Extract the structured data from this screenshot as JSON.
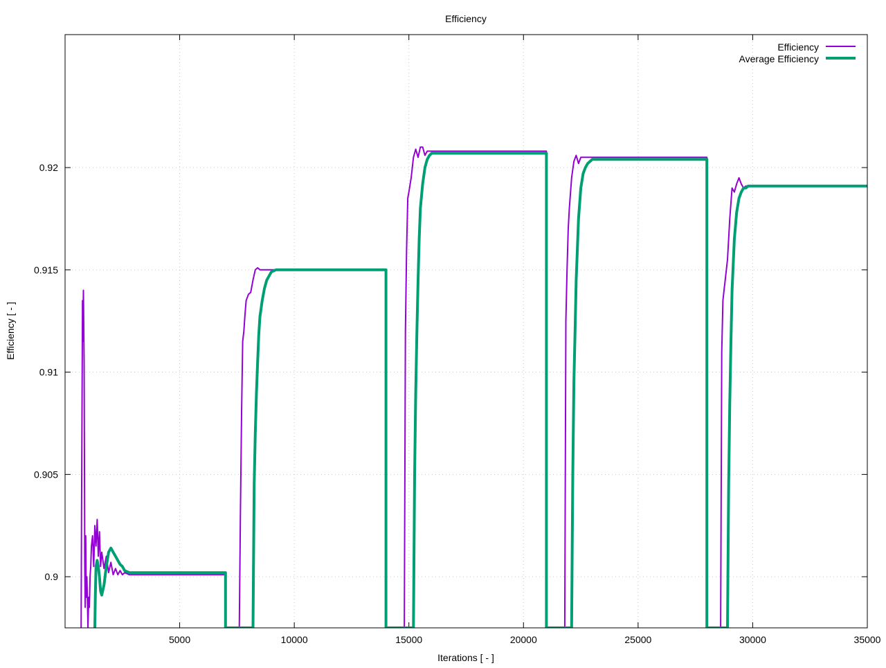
{
  "chart_data": {
    "type": "line",
    "title": "Efficiency",
    "xlabel": "Iterations [ - ]",
    "ylabel": "Efficiency [ - ]",
    "xlim": [
      0,
      35000
    ],
    "ylim": [
      0.8975,
      0.9265
    ],
    "x_ticks": [
      {
        "value": 5000,
        "label": "5000"
      },
      {
        "value": 10000,
        "label": "10000"
      },
      {
        "value": 15000,
        "label": "15000"
      },
      {
        "value": 20000,
        "label": "20000"
      },
      {
        "value": 25000,
        "label": "25000"
      },
      {
        "value": 30000,
        "label": "30000"
      },
      {
        "value": 35000,
        "label": "35000"
      }
    ],
    "y_ticks": [
      {
        "value": 0.9,
        "label": "0.9"
      },
      {
        "value": 0.905,
        "label": "0.905"
      },
      {
        "value": 0.91,
        "label": "0.91"
      },
      {
        "value": 0.915,
        "label": "0.915"
      },
      {
        "value": 0.92,
        "label": "0.92"
      }
    ],
    "grid": true,
    "legend_position": "top-right",
    "series": [
      {
        "name": "Efficiency",
        "color": "#9400d3",
        "line_width": 2,
        "x": [
          700,
          720,
          760,
          780,
          800,
          830,
          860,
          880,
          900,
          920,
          950,
          980,
          1000,
          1030,
          1060,
          1090,
          1120,
          1150,
          1200,
          1250,
          1300,
          1350,
          1400,
          1450,
          1500,
          1550,
          1600,
          1700,
          1800,
          1900,
          2000,
          2100,
          2200,
          2300,
          2400,
          2500,
          2600,
          2800,
          2800,
          7000,
          7000,
          7600,
          7650,
          7700,
          7750,
          7800,
          7850,
          7900,
          8000,
          8100,
          8200,
          8300,
          8400,
          8500,
          8700,
          9000,
          14000,
          14000,
          14800,
          14850,
          14900,
          14950,
          15000,
          15100,
          15200,
          15300,
          15400,
          15500,
          15600,
          15700,
          15800,
          16000,
          21000,
          21000,
          21800,
          21850,
          21900,
          21950,
          22000,
          22100,
          22200,
          22300,
          22400,
          22500,
          22600,
          22700,
          23000,
          28000,
          28000,
          28600,
          28650,
          28700,
          28750,
          28800,
          28900,
          29000,
          29100,
          29200,
          29300,
          29400,
          29500,
          29600,
          29700,
          30000,
          35000
        ],
        "y": [
          0.8975,
          0.903,
          0.9135,
          0.9115,
          0.914,
          0.9105,
          0.9005,
          0.8985,
          0.902,
          0.899,
          0.9,
          0.8985,
          0.8975,
          0.899,
          0.8985,
          0.9,
          0.9005,
          0.9015,
          0.902,
          0.9005,
          0.9025,
          0.9015,
          0.9028,
          0.901,
          0.9022,
          0.9005,
          0.9012,
          0.9004,
          0.901,
          0.9002,
          0.9007,
          0.9001,
          0.9004,
          0.9001,
          0.9003,
          0.9001,
          0.9002,
          0.9001,
          0.9001,
          0.9001,
          0.8975,
          0.8975,
          0.903,
          0.908,
          0.9115,
          0.912,
          0.9128,
          0.9135,
          0.9138,
          0.9139,
          0.9145,
          0.915,
          0.9151,
          0.915,
          0.915,
          0.915,
          0.915,
          0.8975,
          0.8975,
          0.912,
          0.916,
          0.9185,
          0.9188,
          0.9195,
          0.9205,
          0.9209,
          0.9205,
          0.921,
          0.921,
          0.9206,
          0.9208,
          0.9208,
          0.9208,
          0.8975,
          0.8975,
          0.9125,
          0.915,
          0.917,
          0.918,
          0.9195,
          0.9203,
          0.9206,
          0.9202,
          0.9205,
          0.9205,
          0.9205,
          0.9205,
          0.9205,
          0.8975,
          0.8975,
          0.911,
          0.9135,
          0.914,
          0.9145,
          0.9155,
          0.9175,
          0.919,
          0.9188,
          0.9192,
          0.9195,
          0.9192,
          0.919,
          0.9191,
          0.9191,
          0.9191
        ]
      },
      {
        "name": "Average Efficiency",
        "color": "#009e73",
        "line_width": 4,
        "x": [
          1300,
          1320,
          1350,
          1400,
          1450,
          1500,
          1550,
          1600,
          1700,
          1800,
          1900,
          2000,
          2100,
          2200,
          2300,
          2400,
          2500,
          2600,
          2800,
          7000,
          7000,
          8200,
          8250,
          8300,
          8350,
          8400,
          8450,
          8500,
          8600,
          8700,
          8800,
          8900,
          9000,
          9200,
          14000,
          14000,
          14200,
          15200,
          15250,
          15300,
          15350,
          15400,
          15450,
          15500,
          15600,
          15700,
          15800,
          15900,
          16000,
          21000,
          21000,
          21200,
          22100,
          22150,
          22200,
          22250,
          22300,
          22400,
          22500,
          22600,
          22700,
          22800,
          23000,
          28000,
          28000,
          28200,
          28900,
          28950,
          29000,
          29050,
          29100,
          29200,
          29300,
          29400,
          29500,
          29600,
          29700,
          29800,
          29900,
          35000
        ],
        "y": [
          0.8975,
          0.899,
          0.9005,
          0.9008,
          0.9005,
          0.9,
          0.8993,
          0.8991,
          0.8996,
          0.9005,
          0.9012,
          0.9014,
          0.9012,
          0.901,
          0.9008,
          0.9006,
          0.9005,
          0.9003,
          0.9002,
          0.9002,
          0.8975,
          0.8975,
          0.9045,
          0.907,
          0.909,
          0.9105,
          0.9118,
          0.9127,
          0.9135,
          0.9141,
          0.9145,
          0.9147,
          0.9149,
          0.915,
          0.915,
          0.8975,
          0.8975,
          0.8975,
          0.905,
          0.909,
          0.912,
          0.9145,
          0.9165,
          0.918,
          0.9192,
          0.92,
          0.9204,
          0.9206,
          0.9207,
          0.9207,
          0.8975,
          0.8975,
          0.8975,
          0.905,
          0.9095,
          0.912,
          0.9145,
          0.9175,
          0.919,
          0.9197,
          0.92,
          0.9202,
          0.9204,
          0.9204,
          0.8975,
          0.8975,
          0.8975,
          0.9045,
          0.9085,
          0.9115,
          0.914,
          0.9165,
          0.9178,
          0.9185,
          0.9188,
          0.919,
          0.919,
          0.9191,
          0.9191,
          0.9191
        ]
      }
    ]
  }
}
